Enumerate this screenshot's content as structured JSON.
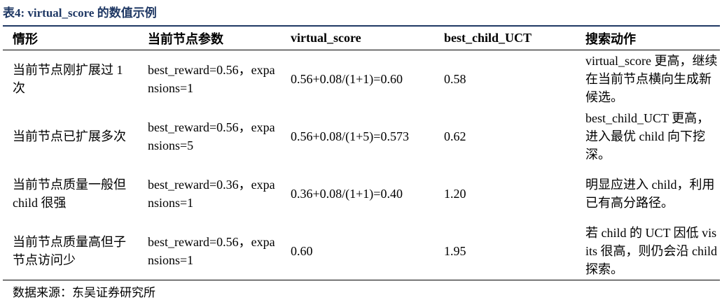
{
  "title": "表4: virtual_score 的数值示例",
  "table": {
    "header": [
      "情形",
      "当前节点参数",
      "virtual_score",
      "best_child_UCT",
      "搜索动作"
    ],
    "rows": [
      [
        "当前节点刚扩展过 1 次",
        "best_reward=0.56，expansions=1",
        "0.56+0.08/(1+1)=0.60",
        "0.58",
        "virtual_score 更高，继续在当前节点横向生成新候选。"
      ],
      [
        "当前节点已扩展多次",
        "best_reward=0.56，expansions=5",
        "0.56+0.08/(1+5)=0.573",
        "0.62",
        "best_child_UCT 更高，进入最优 child 向下挖深。"
      ],
      [
        "当前节点质量一般但 child 很强",
        "best_reward=0.36，expansions=1",
        "0.36+0.08/(1+1)=0.40",
        "1.20",
        "明显应进入 child，利用已有高分路径。"
      ],
      [
        "当前节点质量高但子节点访问少",
        "best_reward=0.56，expansions=1",
        "0.60",
        "1.95",
        "若 child 的 UCT 因低 visits 很高，则仍会沿 child 探索。"
      ]
    ]
  },
  "source": "数据来源：东吴证券研究所"
}
